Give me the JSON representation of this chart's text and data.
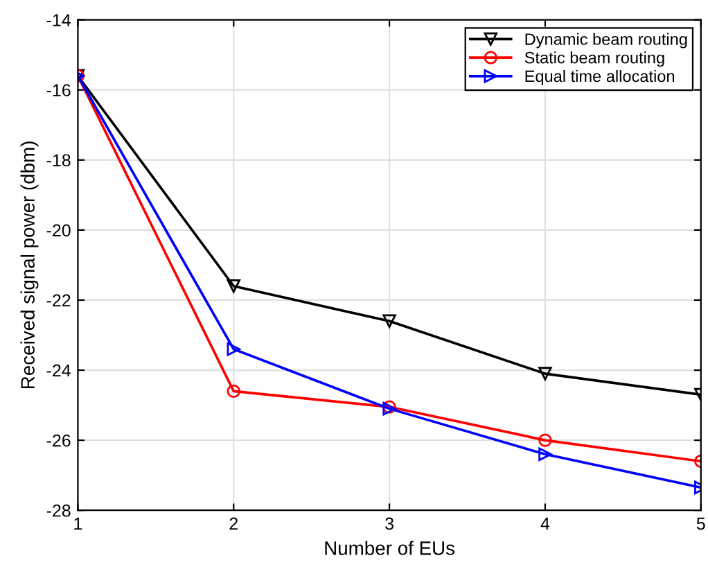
{
  "chart_data": {
    "type": "line",
    "xlabel": "Number of EUs",
    "ylabel": "Received signal power (dbm)",
    "x": [
      1,
      2,
      3,
      4,
      5
    ],
    "series": [
      {
        "name": "Dynamic beam routing",
        "color": "#000000",
        "marker": "triangle_down",
        "values": [
          -15.6,
          -21.6,
          -22.6,
          -24.1,
          -24.7
        ]
      },
      {
        "name": "Static beam routing",
        "color": "#ff0000",
        "marker": "circle",
        "values": [
          -15.6,
          -24.6,
          -25.05,
          -26.0,
          -26.6
        ]
      },
      {
        "name": "Equal time allocation",
        "color": "#0000ff",
        "marker": "triangle_right",
        "values": [
          -15.6,
          -23.4,
          -25.1,
          -26.4,
          -27.35
        ]
      }
    ],
    "xlim": [
      1,
      5
    ],
    "xticks": [
      1,
      2,
      3,
      4,
      5
    ],
    "ylim": [
      -28,
      -14
    ],
    "yticks": [
      -28,
      -26,
      -24,
      -22,
      -20,
      -18,
      -16,
      -14
    ],
    "grid": true,
    "legend": "top right"
  }
}
